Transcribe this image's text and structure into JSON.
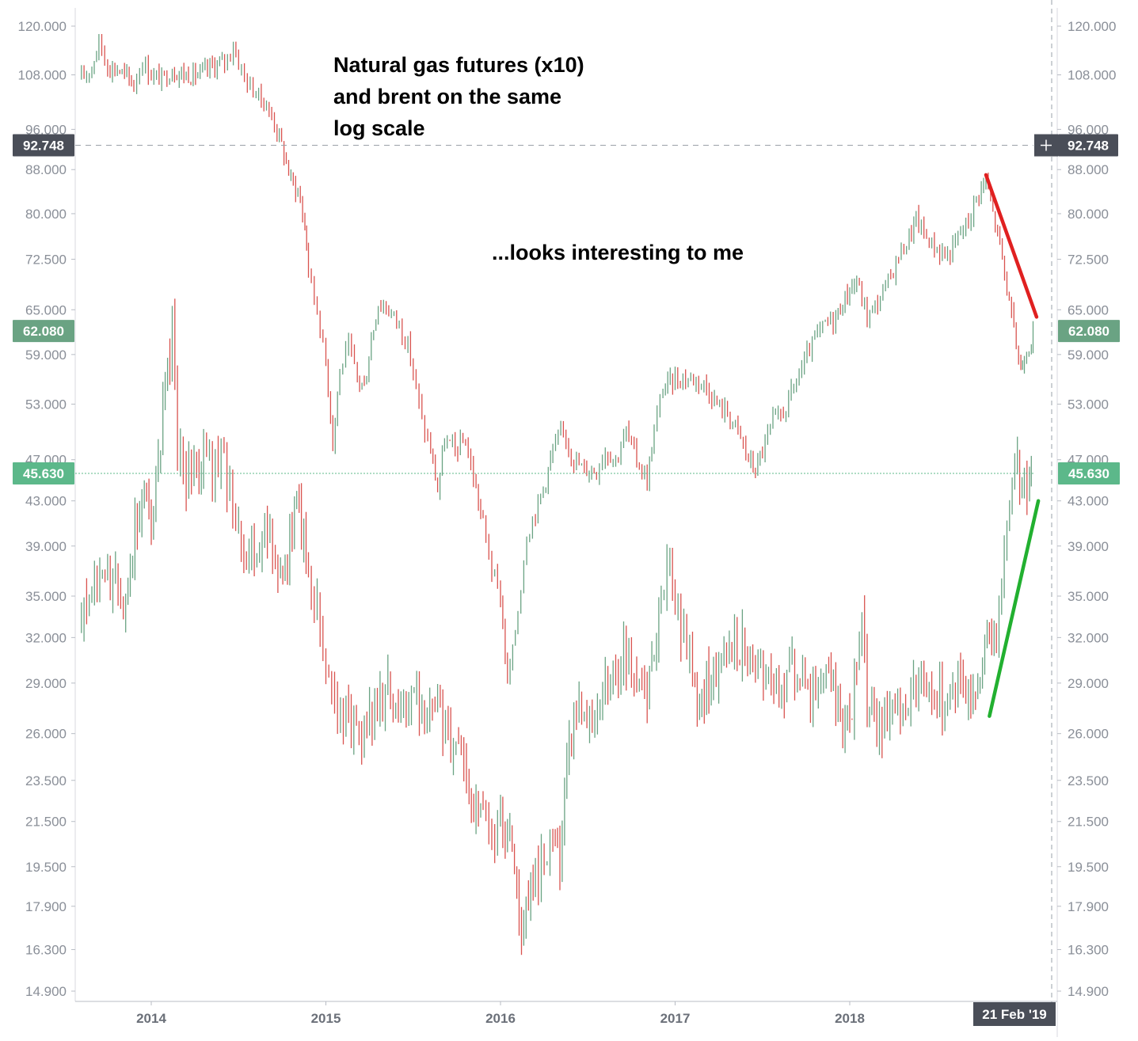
{
  "chart_data": {
    "type": "line",
    "title": "Natural gas futures (x10) and brent on the same log scale",
    "scale": "log",
    "ylim": [
      14.9,
      120.0
    ],
    "y_ticks": [
      "120.000",
      "108.000",
      "96.000",
      "88.000",
      "80.000",
      "72.500",
      "65.000",
      "59.000",
      "53.000",
      "47.000",
      "43.000",
      "39.000",
      "35.000",
      "32.000",
      "29.000",
      "26.000",
      "23.500",
      "21.500",
      "19.500",
      "17.900",
      "16.300",
      "14.900"
    ],
    "x_ticks": [
      "2014",
      "2015",
      "2016",
      "2017",
      "2018"
    ],
    "x_range": [
      2013.58,
      2019.26
    ],
    "series": [
      {
        "name": "Brent",
        "last_value": "62.080",
        "points": [
          [
            2013.6,
            107
          ],
          [
            2013.66,
            110
          ],
          [
            2013.7,
            116
          ],
          [
            2013.75,
            110
          ],
          [
            2013.82,
            109
          ],
          [
            2013.9,
            106
          ],
          [
            2013.95,
            111
          ],
          [
            2014.0,
            108
          ],
          [
            2014.06,
            107
          ],
          [
            2014.12,
            109
          ],
          [
            2014.2,
            108
          ],
          [
            2014.28,
            108
          ],
          [
            2014.35,
            110
          ],
          [
            2014.42,
            111
          ],
          [
            2014.47,
            115
          ],
          [
            2014.5,
            111
          ],
          [
            2014.55,
            106
          ],
          [
            2014.6,
            104
          ],
          [
            2014.66,
            101
          ],
          [
            2014.72,
            96
          ],
          [
            2014.76,
            91
          ],
          [
            2014.8,
            86
          ],
          [
            2014.84,
            84
          ],
          [
            2014.88,
            78
          ],
          [
            2014.9,
            71
          ],
          [
            2014.95,
            65
          ],
          [
            2015.0,
            58
          ],
          [
            2015.04,
            49
          ],
          [
            2015.08,
            57
          ],
          [
            2015.13,
            60
          ],
          [
            2015.18,
            56
          ],
          [
            2015.22,
            55
          ],
          [
            2015.26,
            61
          ],
          [
            2015.3,
            66
          ],
          [
            2015.36,
            65
          ],
          [
            2015.42,
            63
          ],
          [
            2015.47,
            60
          ],
          [
            2015.5,
            57
          ],
          [
            2015.55,
            51
          ],
          [
            2015.6,
            48
          ],
          [
            2015.64,
            44
          ],
          [
            2015.68,
            49
          ],
          [
            2015.74,
            48
          ],
          [
            2015.8,
            49
          ],
          [
            2015.86,
            44
          ],
          [
            2015.9,
            41
          ],
          [
            2015.95,
            37
          ],
          [
            2016.0,
            35
          ],
          [
            2016.04,
            29
          ],
          [
            2016.07,
            31
          ],
          [
            2016.1,
            34
          ],
          [
            2016.15,
            40
          ],
          [
            2016.2,
            42
          ],
          [
            2016.26,
            45
          ],
          [
            2016.3,
            48
          ],
          [
            2016.36,
            50
          ],
          [
            2016.42,
            47
          ],
          [
            2016.48,
            46
          ],
          [
            2016.55,
            46
          ],
          [
            2016.6,
            48
          ],
          [
            2016.66,
            47
          ],
          [
            2016.72,
            50
          ],
          [
            2016.78,
            47
          ],
          [
            2016.84,
            45
          ],
          [
            2016.88,
            50
          ],
          [
            2016.93,
            55
          ],
          [
            2017.0,
            56
          ],
          [
            2017.06,
            56
          ],
          [
            2017.12,
            56
          ],
          [
            2017.18,
            55
          ],
          [
            2017.24,
            53
          ],
          [
            2017.3,
            52
          ],
          [
            2017.36,
            50
          ],
          [
            2017.42,
            47
          ],
          [
            2017.46,
            46
          ],
          [
            2017.5,
            48
          ],
          [
            2017.56,
            51
          ],
          [
            2017.62,
            52
          ],
          [
            2017.68,
            55
          ],
          [
            2017.74,
            58
          ],
          [
            2017.8,
            61
          ],
          [
            2017.86,
            63
          ],
          [
            2017.92,
            64
          ],
          [
            2018.0,
            68
          ],
          [
            2018.04,
            69
          ],
          [
            2018.1,
            64
          ],
          [
            2018.16,
            66
          ],
          [
            2018.22,
            69
          ],
          [
            2018.28,
            73
          ],
          [
            2018.34,
            76
          ],
          [
            2018.38,
            79
          ],
          [
            2018.44,
            76
          ],
          [
            2018.5,
            74
          ],
          [
            2018.56,
            73
          ],
          [
            2018.62,
            76
          ],
          [
            2018.68,
            79
          ],
          [
            2018.74,
            84
          ],
          [
            2018.78,
            86
          ],
          [
            2018.82,
            80
          ],
          [
            2018.86,
            75
          ],
          [
            2018.9,
            68
          ],
          [
            2018.94,
            62
          ],
          [
            2018.98,
            57
          ],
          [
            2019.0,
            59
          ],
          [
            2019.04,
            61
          ],
          [
            2019.06,
            62.08
          ]
        ]
      },
      {
        "name": "Natural gas futures (x10)",
        "last_value": "45.630",
        "points": [
          [
            2013.6,
            33
          ],
          [
            2013.66,
            35
          ],
          [
            2013.72,
            37
          ],
          [
            2013.78,
            36
          ],
          [
            2013.84,
            35
          ],
          [
            2013.88,
            38
          ],
          [
            2013.92,
            42
          ],
          [
            2013.96,
            44
          ],
          [
            2014.0,
            42
          ],
          [
            2014.04,
            46
          ],
          [
            2014.08,
            54
          ],
          [
            2014.12,
            62
          ],
          [
            2014.15,
            48
          ],
          [
            2014.2,
            45
          ],
          [
            2014.26,
            46
          ],
          [
            2014.3,
            48
          ],
          [
            2014.35,
            46
          ],
          [
            2014.4,
            47
          ],
          [
            2014.45,
            44
          ],
          [
            2014.5,
            41
          ],
          [
            2014.56,
            38
          ],
          [
            2014.62,
            39
          ],
          [
            2014.68,
            39
          ],
          [
            2014.74,
            38
          ],
          [
            2014.78,
            37
          ],
          [
            2014.82,
            43
          ],
          [
            2014.86,
            41
          ],
          [
            2014.9,
            37
          ],
          [
            2014.95,
            34
          ],
          [
            2015.0,
            30
          ],
          [
            2015.05,
            28
          ],
          [
            2015.1,
            27
          ],
          [
            2015.16,
            27
          ],
          [
            2015.22,
            26
          ],
          [
            2015.28,
            27
          ],
          [
            2015.34,
            29
          ],
          [
            2015.4,
            27
          ],
          [
            2015.46,
            28
          ],
          [
            2015.52,
            28
          ],
          [
            2015.58,
            27
          ],
          [
            2015.64,
            27
          ],
          [
            2015.7,
            26
          ],
          [
            2015.76,
            25
          ],
          [
            2015.82,
            23
          ],
          [
            2015.86,
            22
          ],
          [
            2015.9,
            22
          ],
          [
            2015.95,
            20
          ],
          [
            2016.0,
            22
          ],
          [
            2016.04,
            21
          ],
          [
            2016.08,
            19
          ],
          [
            2016.12,
            17
          ],
          [
            2016.16,
            18
          ],
          [
            2016.2,
            19
          ],
          [
            2016.25,
            20
          ],
          [
            2016.3,
            21
          ],
          [
            2016.34,
            20
          ],
          [
            2016.38,
            24
          ],
          [
            2016.42,
            27
          ],
          [
            2016.48,
            28
          ],
          [
            2016.54,
            27
          ],
          [
            2016.6,
            29
          ],
          [
            2016.66,
            30
          ],
          [
            2016.72,
            31
          ],
          [
            2016.78,
            29
          ],
          [
            2016.84,
            28
          ],
          [
            2016.88,
            31
          ],
          [
            2016.92,
            36
          ],
          [
            2016.97,
            37
          ],
          [
            2017.0,
            34
          ],
          [
            2017.05,
            32
          ],
          [
            2017.1,
            30
          ],
          [
            2017.14,
            27
          ],
          [
            2017.18,
            29
          ],
          [
            2017.22,
            30
          ],
          [
            2017.28,
            31
          ],
          [
            2017.34,
            32
          ],
          [
            2017.4,
            31
          ],
          [
            2017.46,
            30
          ],
          [
            2017.52,
            29
          ],
          [
            2017.58,
            29
          ],
          [
            2017.64,
            29
          ],
          [
            2017.7,
            30
          ],
          [
            2017.76,
            29
          ],
          [
            2017.82,
            28
          ],
          [
            2017.88,
            30
          ],
          [
            2017.92,
            28
          ],
          [
            2017.96,
            27
          ],
          [
            2018.0,
            27
          ],
          [
            2018.04,
            30
          ],
          [
            2018.07,
            34
          ],
          [
            2018.1,
            28
          ],
          [
            2018.14,
            26
          ],
          [
            2018.2,
            27
          ],
          [
            2018.26,
            27
          ],
          [
            2018.32,
            28
          ],
          [
            2018.38,
            29
          ],
          [
            2018.44,
            29
          ],
          [
            2018.5,
            28
          ],
          [
            2018.56,
            28
          ],
          [
            2018.62,
            29
          ],
          [
            2018.68,
            28
          ],
          [
            2018.72,
            29
          ],
          [
            2018.76,
            31
          ],
          [
            2018.8,
            32
          ],
          [
            2018.84,
            32
          ],
          [
            2018.87,
            36
          ],
          [
            2018.9,
            40
          ],
          [
            2018.93,
            46
          ],
          [
            2018.96,
            47
          ],
          [
            2019.0,
            44
          ],
          [
            2019.03,
            46
          ],
          [
            2019.05,
            45.63
          ]
        ]
      }
    ],
    "horizontal_lines": [
      {
        "value": 92.748,
        "label": "92.748",
        "style": "dashed-crosshair"
      },
      {
        "value": 45.63,
        "label": "45.630",
        "style": "dotted"
      }
    ],
    "trend_arrows": [
      {
        "series": "Brent",
        "color": "#e02020",
        "from": [
          2018.78,
          87
        ],
        "to": [
          2019.07,
          64
        ]
      },
      {
        "series": "Natural gas futures (x10)",
        "color": "#22b030",
        "from": [
          2018.8,
          27
        ],
        "to": [
          2019.08,
          43
        ]
      }
    ],
    "crosshair_date": "21 Feb '19",
    "annotations": [
      "Natural gas futures (x10)",
      "and brent on the same",
      "log scale",
      "...looks interesting to me"
    ]
  },
  "colors": {
    "up": "#6aa383",
    "down": "#d9534f",
    "brent_badge": "#6aa383",
    "gas_badge": "#5cb88a",
    "crosshair_badge": "#4a4e58",
    "axis_text": "#8a8f98",
    "dotted_line": "#5cb88a"
  }
}
